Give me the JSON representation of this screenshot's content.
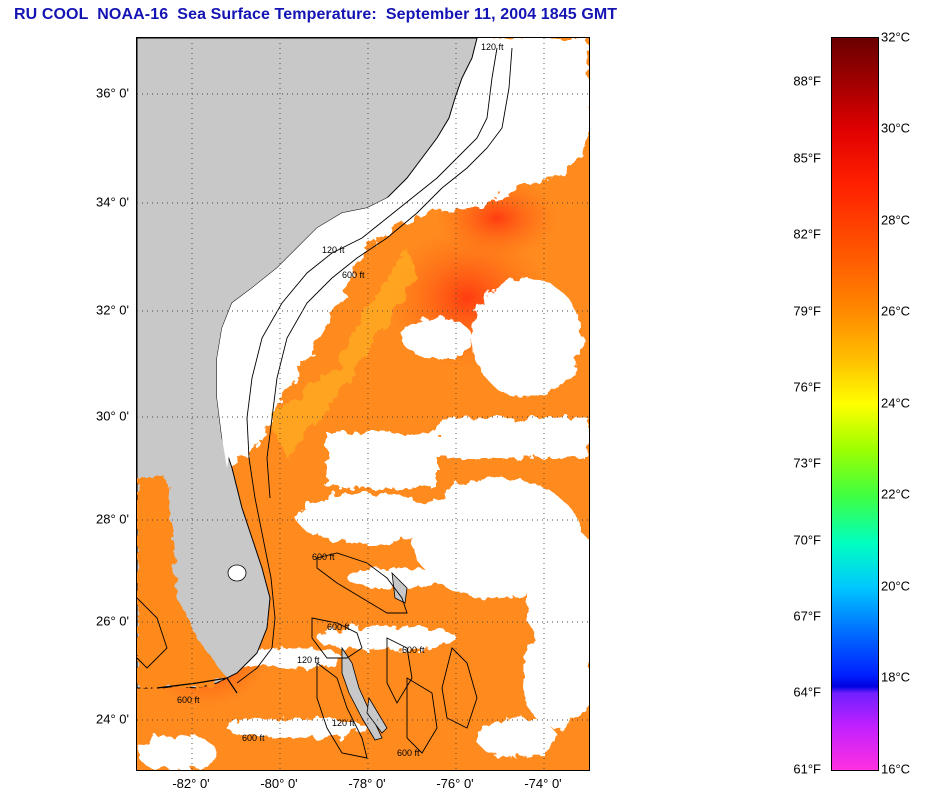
{
  "title": "RU COOL  NOAA-16  Sea Surface Temperature:  September 11, 2004 1845 GMT",
  "map": {
    "lat_labels": [
      "36° 0'",
      "34° 0'",
      "32° 0'",
      "30° 0'",
      "28° 0'",
      "26° 0'",
      "24° 0'"
    ],
    "lon_labels": [
      "-82° 0'",
      "-80° 0'",
      "-78° 0'",
      "-76° 0'",
      "-74° 0'"
    ],
    "contour_labels": [
      "120 ft",
      "600 ft"
    ],
    "colors": {
      "land": "#c8c8c8",
      "cloud": "#ffffff",
      "warm": "#ff8a1e",
      "warmer": "#ff5a12",
      "cool": "#ffc020"
    }
  },
  "colorbar": {
    "fahrenheit": [
      "88°F",
      "85°F",
      "82°F",
      "79°F",
      "76°F",
      "73°F",
      "70°F",
      "67°F",
      "64°F",
      "61°F"
    ],
    "celsius": [
      "32°C",
      "30°C",
      "28°C",
      "26°C",
      "24°C",
      "22°C",
      "20°C",
      "18°C",
      "16°C"
    ],
    "range_c": [
      16,
      32
    ]
  }
}
